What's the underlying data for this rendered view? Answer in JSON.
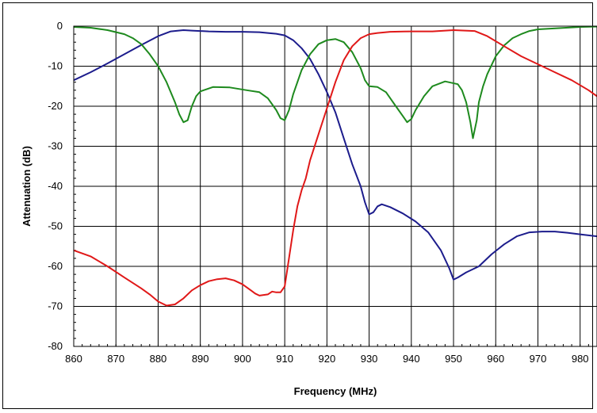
{
  "chart_data": {
    "type": "line",
    "title": "",
    "xlabel": "Frequency (MHz)",
    "ylabel": "Attenuation (dB)",
    "xlim": [
      860,
      984
    ],
    "ylim": [
      -80,
      0
    ],
    "x_ticks": [
      860,
      870,
      880,
      890,
      900,
      910,
      920,
      930,
      940,
      950,
      960,
      970,
      980
    ],
    "y_ticks": [
      0,
      -10,
      -20,
      -30,
      -40,
      -50,
      -60,
      -70,
      -80
    ],
    "grid": true,
    "legend": "none",
    "series": [
      {
        "color": "#1c1c8c",
        "x": [
          860,
          864,
          868,
          872,
          876,
          880,
          883,
          886,
          888,
          892,
          896,
          900,
          904,
          906,
          908,
          910,
          912,
          914,
          916,
          918,
          920,
          922,
          924,
          926,
          928,
          929,
          930,
          931,
          932,
          933,
          935,
          938,
          941,
          944,
          947,
          949,
          950,
          951,
          953,
          956,
          959,
          962,
          965,
          968,
          971,
          974,
          977,
          980,
          984
        ],
        "y": [
          -13.5,
          -11.5,
          -9.3,
          -7,
          -4.7,
          -2.5,
          -1.3,
          -1,
          -1.1,
          -1.3,
          -1.4,
          -1.4,
          -1.5,
          -1.7,
          -1.9,
          -2.3,
          -3.5,
          -5.5,
          -8.2,
          -12,
          -16.5,
          -21.5,
          -28,
          -34.5,
          -40,
          -44,
          -47,
          -46.5,
          -45,
          -44.5,
          -45.2,
          -46.8,
          -48.8,
          -51.5,
          -56,
          -60.5,
          -63.3,
          -62.8,
          -61.5,
          -60,
          -57,
          -54.5,
          -52.5,
          -51.5,
          -51.3,
          -51.3,
          -51.6,
          -52,
          -52.5
        ]
      },
      {
        "color": "#1e8a1e",
        "x": [
          860,
          864,
          868,
          872,
          874,
          876,
          878,
          880,
          882,
          884,
          885,
          886,
          887,
          888,
          889,
          890,
          893,
          897,
          901,
          904,
          906,
          907,
          908,
          909,
          910,
          911,
          912,
          914,
          916,
          918,
          920,
          922,
          924,
          926,
          928,
          929,
          930,
          932,
          934,
          936,
          938,
          939,
          940,
          941,
          943,
          945,
          948,
          951,
          952,
          953,
          954,
          954.6,
          955.5,
          956,
          957,
          958,
          960,
          962,
          964,
          966,
          968,
          970,
          975,
          980,
          984
        ],
        "y": [
          -0.2,
          -0.4,
          -1,
          -2,
          -3,
          -4.5,
          -7,
          -10,
          -14,
          -19,
          -22,
          -24,
          -23.5,
          -20,
          -17.5,
          -16.3,
          -15.2,
          -15.3,
          -16,
          -16.5,
          -18,
          -19.5,
          -21,
          -23,
          -23.5,
          -21,
          -17,
          -11,
          -7,
          -4.5,
          -3.5,
          -3.2,
          -4,
          -6.5,
          -10.5,
          -13.5,
          -15,
          -15.2,
          -16.5,
          -19.5,
          -22.5,
          -24,
          -23.2,
          -21,
          -17.5,
          -15,
          -13.8,
          -14.5,
          -16,
          -19,
          -24,
          -28,
          -23.5,
          -19,
          -15,
          -12,
          -7.5,
          -4.8,
          -3,
          -2,
          -1.2,
          -0.8,
          -0.5,
          -0.2,
          -0.1
        ]
      },
      {
        "color": "#e01818",
        "x": [
          860,
          864,
          868,
          872,
          876,
          878,
          880,
          882,
          884,
          886,
          888,
          890,
          892,
          894,
          896,
          898,
          900,
          902,
          903,
          904,
          906,
          907,
          908,
          909,
          910,
          911,
          912,
          913,
          914,
          915,
          916,
          918,
          920,
          922,
          924,
          926,
          928,
          930,
          932,
          935,
          940,
          945,
          950,
          955,
          958,
          962,
          966,
          970,
          974,
          978,
          982,
          984
        ],
        "y": [
          -56,
          -57.5,
          -60,
          -62.8,
          -65.5,
          -67,
          -68.8,
          -69.8,
          -69.5,
          -68,
          -66,
          -64.7,
          -63.7,
          -63.2,
          -63,
          -63.5,
          -64.5,
          -66,
          -66.8,
          -67.3,
          -67,
          -66.3,
          -66.5,
          -66.5,
          -65,
          -58,
          -51,
          -45,
          -41,
          -38,
          -33.5,
          -27,
          -20.5,
          -14,
          -8.5,
          -5,
          -3,
          -2,
          -1.7,
          -1.4,
          -1.3,
          -1.3,
          -1,
          -1.2,
          -2.5,
          -5,
          -7.5,
          -9.5,
          -11.5,
          -13.5,
          -16,
          -17.5
        ]
      }
    ]
  }
}
